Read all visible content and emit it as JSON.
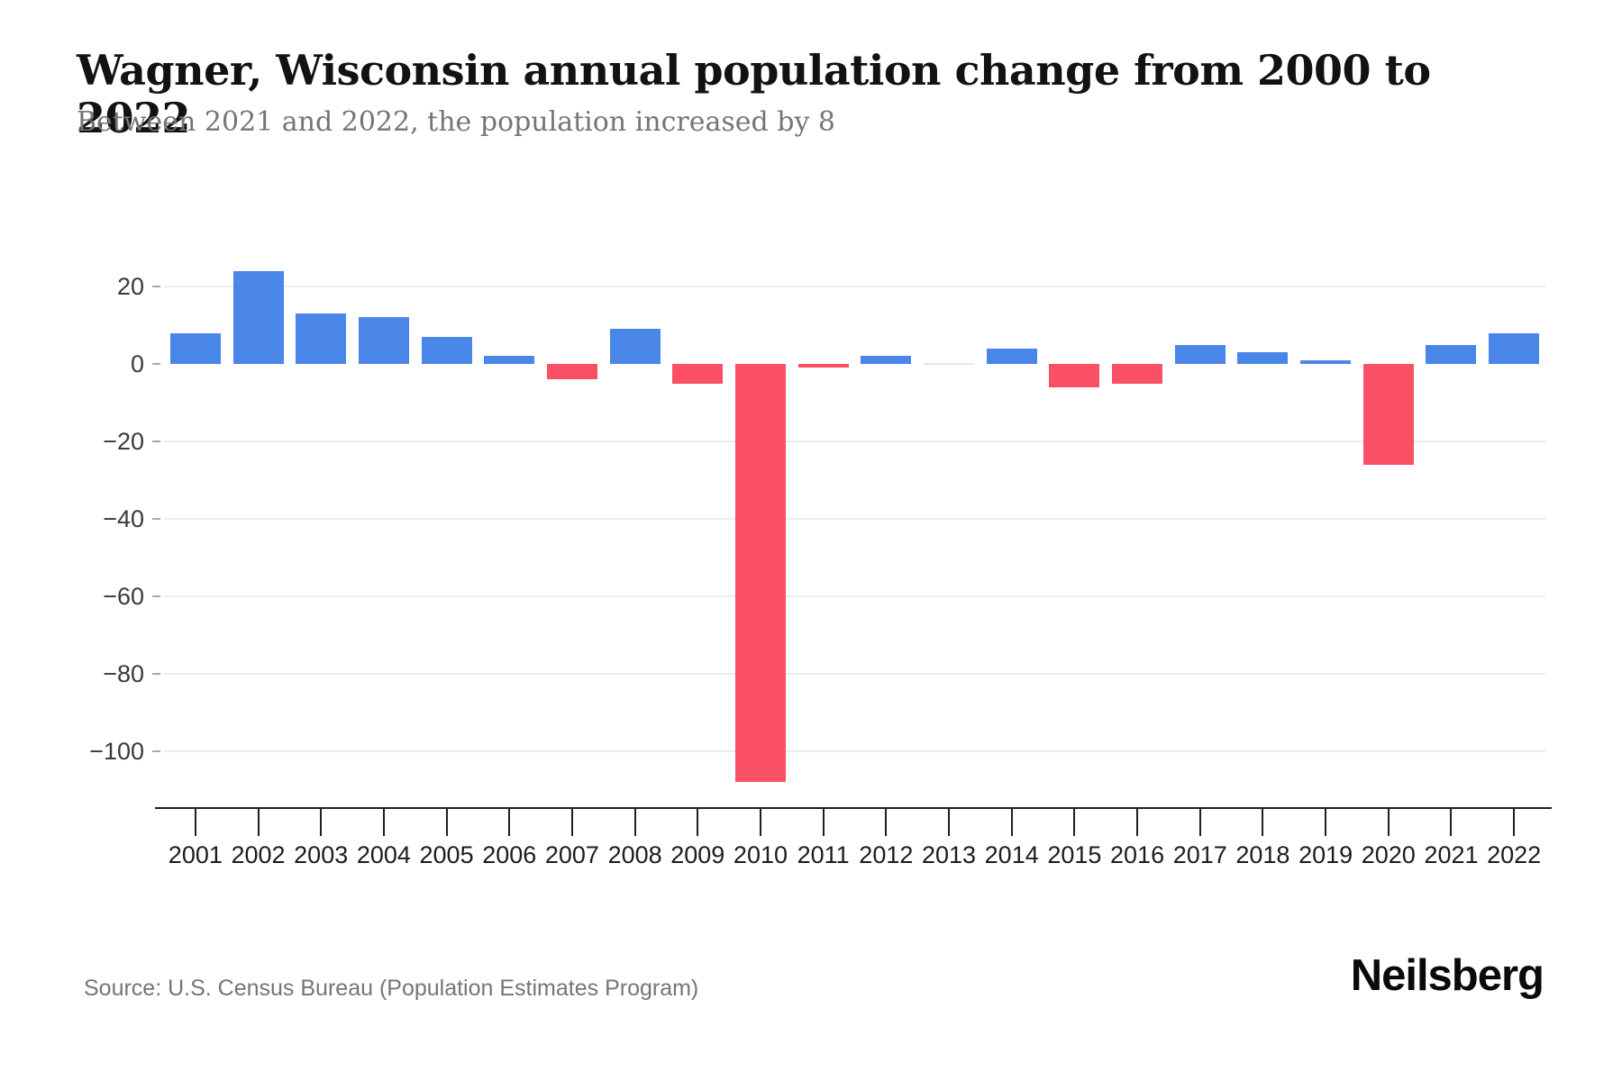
{
  "header": {
    "title": "Wagner, Wisconsin annual population change from 2000 to 2022",
    "subtitle": "Between 2021 and 2022, the population increased by 8"
  },
  "chart_data": {
    "type": "bar",
    "title": "Wagner, Wisconsin annual population change from 2000 to 2022",
    "categories": [
      "2001",
      "2002",
      "2003",
      "2004",
      "2005",
      "2006",
      "2007",
      "2008",
      "2009",
      "2010",
      "2011",
      "2012",
      "2013",
      "2014",
      "2015",
      "2016",
      "2017",
      "2018",
      "2019",
      "2020",
      "2021",
      "2022"
    ],
    "values": [
      8,
      24,
      13,
      12,
      7,
      2,
      -4,
      9,
      -5,
      -108,
      -1,
      2,
      0,
      4,
      -6,
      -5,
      5,
      3,
      1,
      -26,
      5,
      8
    ],
    "xlabel": "",
    "ylabel": "",
    "ylim": [
      -115,
      28
    ],
    "yticks": [
      20,
      0,
      -20,
      -40,
      -60,
      -80,
      -100
    ],
    "ytick_labels": [
      "20",
      "0",
      "−20",
      "−40",
      "−60",
      "−80",
      "−100"
    ],
    "grid": "horizontal-only, no line at 0",
    "legend": "none",
    "positive_color": "#4a86e8",
    "negative_color": "#fa5066",
    "zero_bar_color": "#e6e6e6",
    "grid_color": "#ececec",
    "axis_color": "#1f1f1f"
  },
  "footer": {
    "source": "Source: U.S. Census Bureau (Population Estimates Program)",
    "logo": "Neilsberg"
  }
}
